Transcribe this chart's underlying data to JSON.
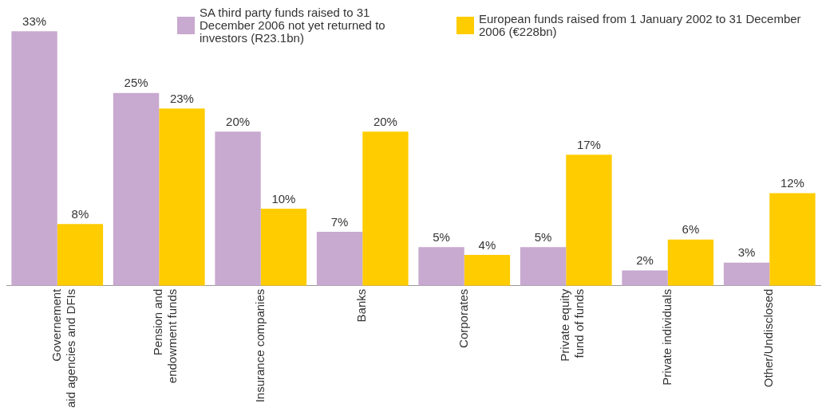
{
  "chart_data": {
    "type": "bar",
    "categories": [
      "Governement\naid agencies and DFIs",
      "Pension and\nendowment funds",
      "Insurance companies",
      "Banks",
      "Corporates",
      "Private equity\nfund of funds",
      "Private individuals",
      "Other/Undisclosed"
    ],
    "series": [
      {
        "name": "SA third party funds raised to 31 December 2006 not yet returned to investors (R23.1bn)",
        "color": "#c8a9cf",
        "values": [
          33,
          25,
          20,
          7,
          5,
          5,
          2,
          3
        ],
        "value_labels": [
          "33%",
          "25%",
          "20%",
          "7%",
          "5%",
          "5%",
          "2%",
          "3%"
        ]
      },
      {
        "name": "European funds raised from 1 January 2002 to 31 December 2006 (€228bn)",
        "color": "#ffcc00",
        "values": [
          8,
          23,
          10,
          20,
          4,
          17,
          6,
          12
        ],
        "value_labels": [
          "8%",
          "23%",
          "10%",
          "20%",
          "4%",
          "17%",
          "6%",
          "12%"
        ]
      }
    ],
    "legend": "top",
    "grid": false
  }
}
